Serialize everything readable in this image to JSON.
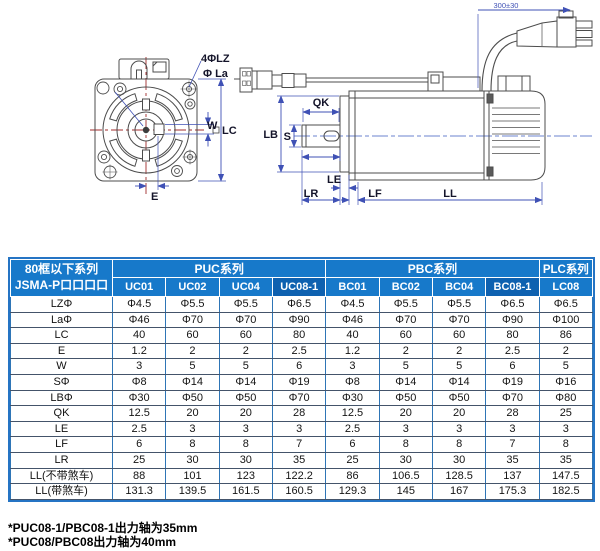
{
  "diagram": {
    "front": {
      "label_bolt_holes": "4ΦLZ",
      "label_pilot_dia": "Φ La",
      "label_key_width": "W",
      "label_frame_size": "LC",
      "label_key_offset": "E"
    },
    "side": {
      "label_key_length": "QK",
      "label_pilot": "LB",
      "label_shaft_dia": "S",
      "label_le": "LE",
      "label_lr": "LR",
      "label_lf": "LF",
      "label_ll": "LL",
      "label_cable_length": "300±30"
    }
  },
  "table": {
    "corner_line1": "80框以下系列",
    "corner_line2": "JSMA-P口口口口",
    "groups": [
      {
        "label": "PUC系列",
        "span": 4
      },
      {
        "label": "PBC系列",
        "span": 4
      },
      {
        "label": "PLC系列",
        "span": 1
      }
    ],
    "models": [
      "UC01",
      "UC02",
      "UC04",
      "UC08-1",
      "BC01",
      "BC02",
      "BC04",
      "BC08-1",
      "LC08"
    ],
    "highlight_models": [
      "UC08-1",
      "BC08-1"
    ],
    "rows": [
      {
        "label": "LZΦ",
        "values": [
          "Φ4.5",
          "Φ5.5",
          "Φ5.5",
          "Φ6.5",
          "Φ4.5",
          "Φ5.5",
          "Φ5.5",
          "Φ6.5",
          "Φ6.5"
        ]
      },
      {
        "label": "LaΦ",
        "values": [
          "Φ46",
          "Φ70",
          "Φ70",
          "Φ90",
          "Φ46",
          "Φ70",
          "Φ70",
          "Φ90",
          "Φ100"
        ]
      },
      {
        "label": "LC",
        "values": [
          "40",
          "60",
          "60",
          "80",
          "40",
          "60",
          "60",
          "80",
          "86"
        ]
      },
      {
        "label": "E",
        "values": [
          "1.2",
          "2",
          "2",
          "2.5",
          "1.2",
          "2",
          "2",
          "2.5",
          "2"
        ]
      },
      {
        "label": "W",
        "values": [
          "3",
          "5",
          "5",
          "6",
          "3",
          "5",
          "5",
          "6",
          "5"
        ]
      },
      {
        "label": "SΦ",
        "values": [
          "Φ8",
          "Φ14",
          "Φ14",
          "Φ19",
          "Φ8",
          "Φ14",
          "Φ14",
          "Φ19",
          "Φ16"
        ]
      },
      {
        "label": "LBΦ",
        "values": [
          "Φ30",
          "Φ50",
          "Φ50",
          "Φ70",
          "Φ30",
          "Φ50",
          "Φ50",
          "Φ70",
          "Φ80"
        ]
      },
      {
        "label": "QK",
        "values": [
          "12.5",
          "20",
          "20",
          "28",
          "12.5",
          "20",
          "20",
          "28",
          "25"
        ]
      },
      {
        "label": "LE",
        "values": [
          "2.5",
          "3",
          "3",
          "3",
          "2.5",
          "3",
          "3",
          "3",
          "3"
        ]
      },
      {
        "label": "LF",
        "values": [
          "6",
          "8",
          "8",
          "7",
          "6",
          "8",
          "8",
          "7",
          "8"
        ]
      },
      {
        "label": "LR",
        "values": [
          "25",
          "30",
          "30",
          "35",
          "25",
          "30",
          "30",
          "35",
          "35"
        ]
      },
      {
        "label": "LL(不带煞车)",
        "values": [
          "88",
          "101",
          "123",
          "122.2",
          "86",
          "106.5",
          "128.5",
          "137",
          "147.5"
        ]
      },
      {
        "label": "LL(带煞车)",
        "values": [
          "131.3",
          "139.5",
          "161.5",
          "160.5",
          "129.3",
          "145",
          "167",
          "175.3",
          "182.5"
        ]
      }
    ]
  },
  "footnotes": [
    "*PUC08-1/PBC08-1出力轴为35mm",
    "*PUC08/PBC08出力轴为40mm"
  ],
  "colors": {
    "header_blue": "#1779ca",
    "header_blue_highlight": "#0e61b0",
    "table_border_blue": "#2574c4",
    "grid_dark": "#44546a",
    "dimension_blue": "#3f51b5",
    "centerline_red": "#a02c2c",
    "drawing_line": "#4c4c4c"
  }
}
